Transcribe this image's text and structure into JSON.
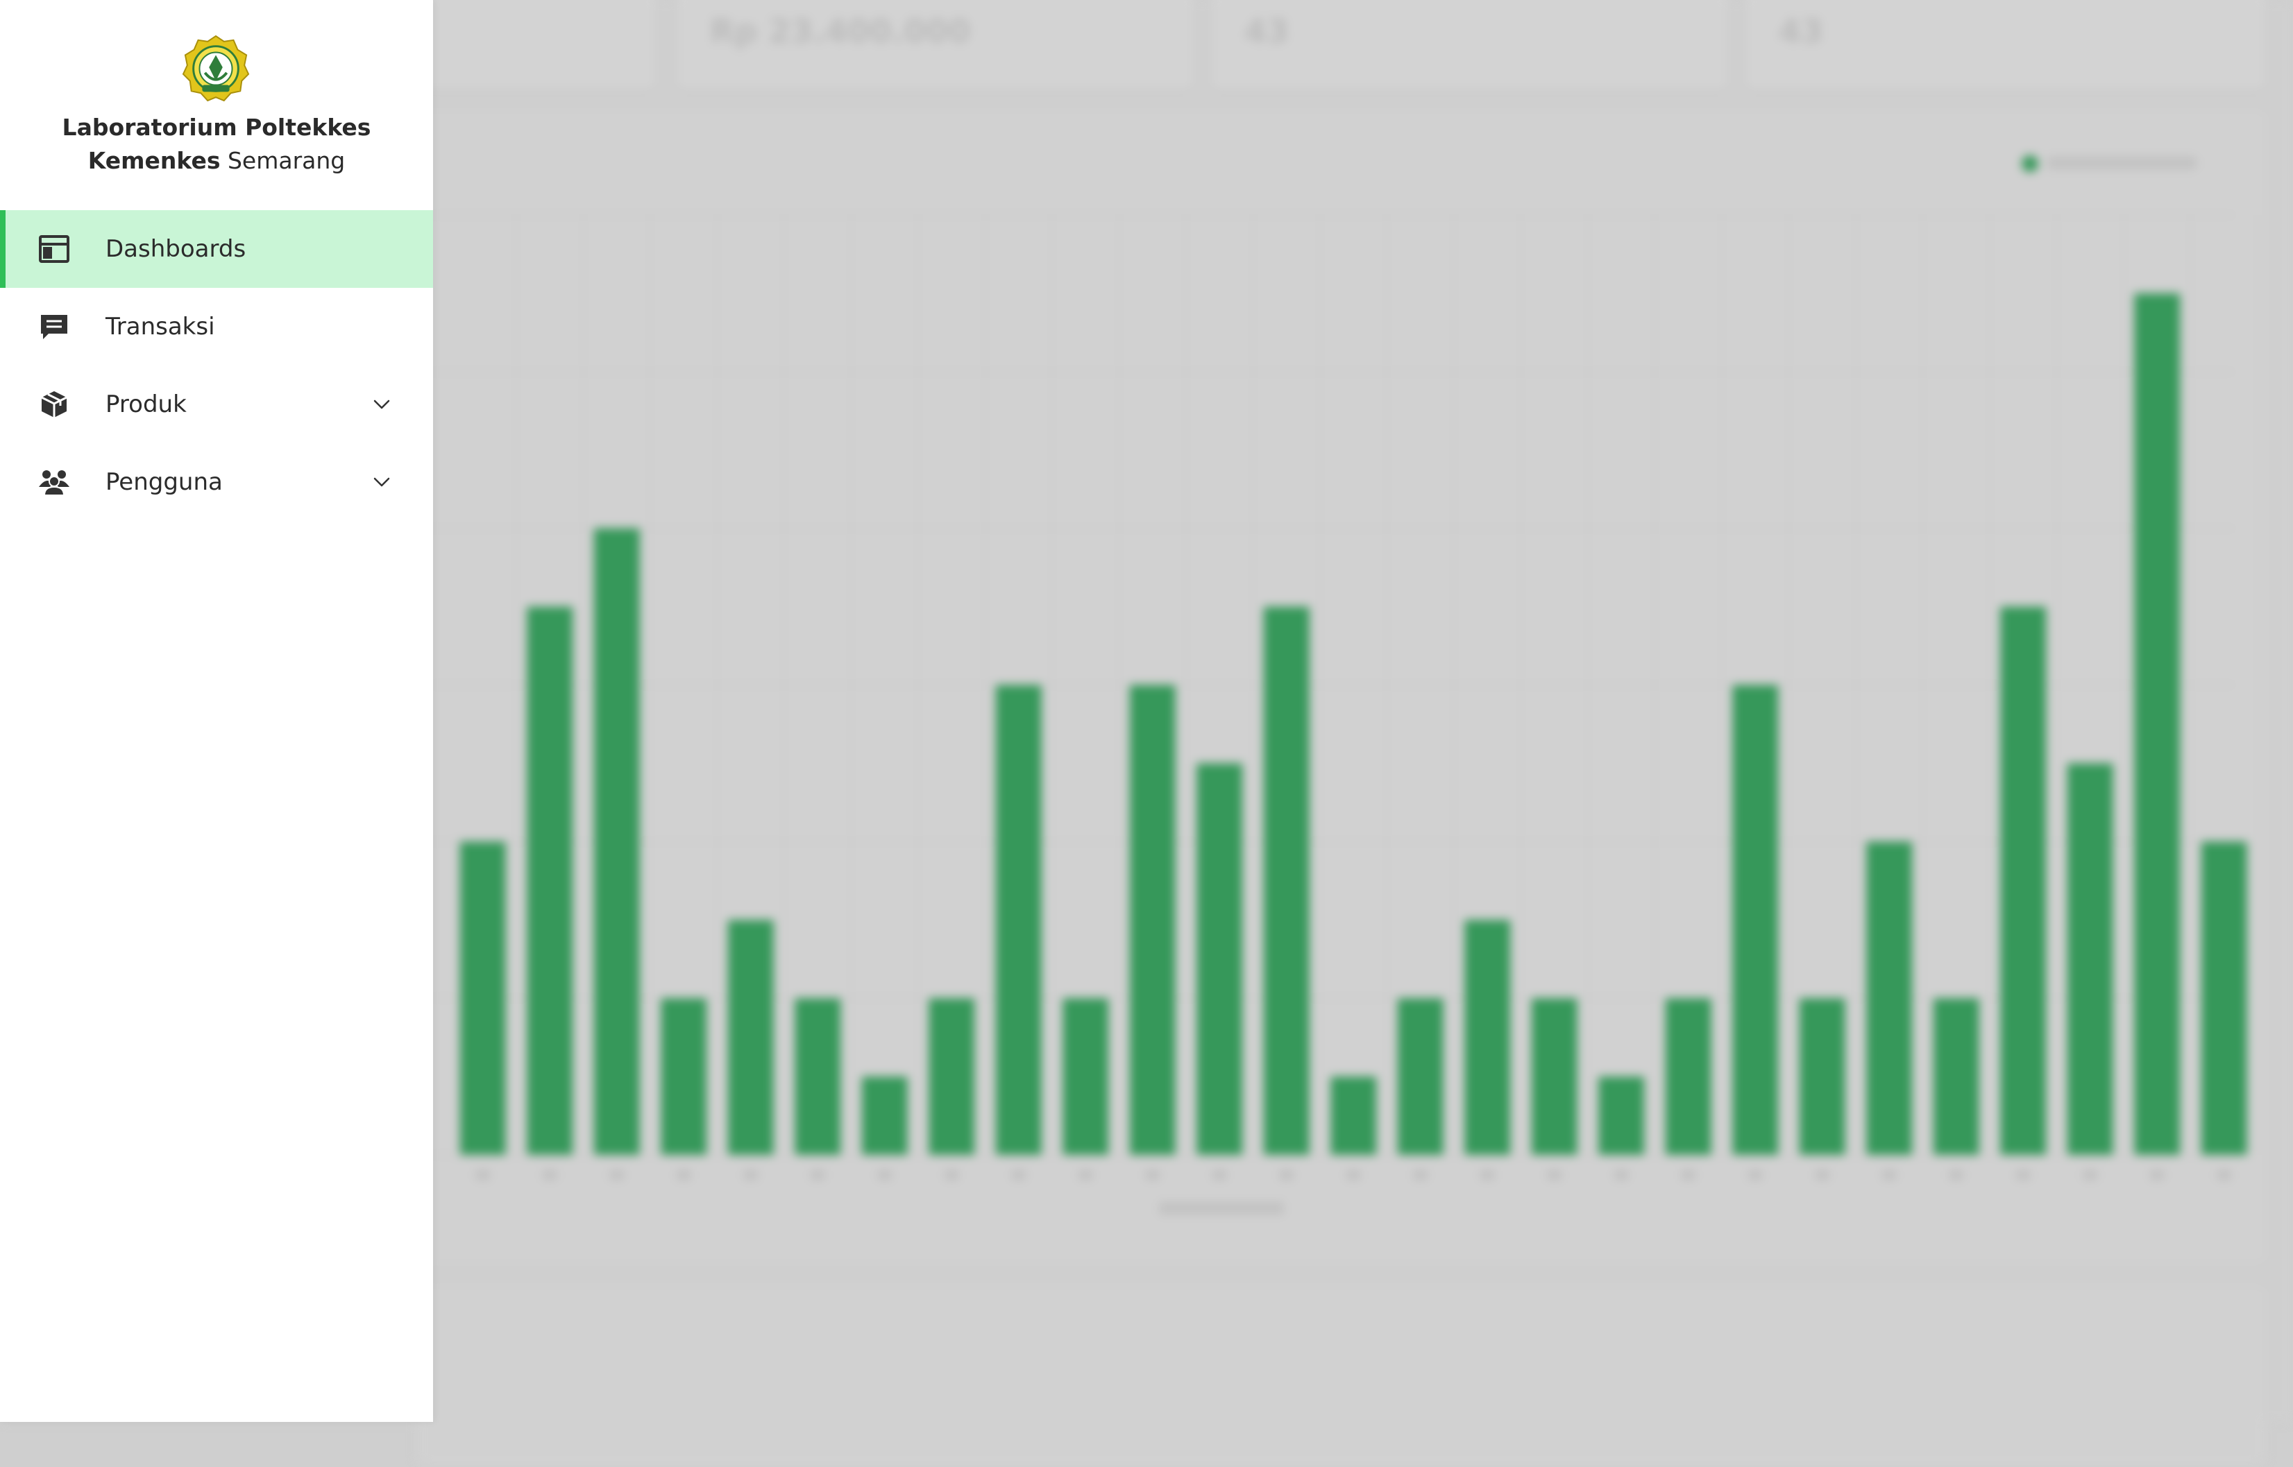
{
  "sidebar": {
    "brand": {
      "logo_icon": "poltekkes-emblem-icon",
      "name_bold_1": "Laboratorium Poltekkes",
      "name_bold_2": "Kemenkes",
      "name_regular": "Semarang"
    },
    "items": [
      {
        "label": "Dashboards",
        "icon": "dashboard-layout-icon",
        "active": true
      },
      {
        "label": "Transaksi",
        "icon": "receipt-icon",
        "active": false
      },
      {
        "label": "Produk",
        "icon": "box-icon",
        "expandable": true
      },
      {
        "label": "Pengguna",
        "icon": "users-icon",
        "expandable": true
      }
    ]
  },
  "background": {
    "stats": [
      {
        "value": ""
      },
      {
        "value": "Rp 23.400.000"
      },
      {
        "value": "43"
      },
      {
        "value": "43"
      }
    ],
    "colors": {
      "bar": "#36985a",
      "overlay": "#cfcfcf",
      "active_bg": "#c9f5d6",
      "active_bar": "#2fbf57"
    }
  },
  "chart_data": {
    "type": "bar",
    "values": [
      4,
      7,
      8,
      2,
      3,
      2,
      1,
      2,
      6,
      2,
      6,
      5,
      7,
      1,
      2,
      3,
      2,
      1,
      2,
      6,
      2,
      4,
      2,
      7,
      5,
      11,
      4
    ],
    "ylim": [
      0,
      12
    ]
  }
}
